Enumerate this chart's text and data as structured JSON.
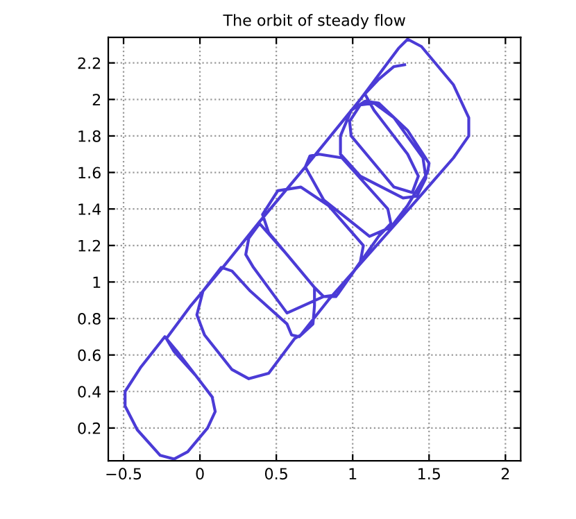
{
  "chart_data": {
    "type": "line",
    "title": "The orbit of steady flow",
    "xlim": [
      -0.6,
      2.1
    ],
    "ylim": [
      0.02,
      2.34
    ],
    "xticks": [
      -0.5,
      0,
      0.5,
      1,
      1.5,
      2
    ],
    "yticks": [
      0.2,
      0.4,
      0.6,
      0.8,
      1,
      1.2,
      1.4,
      1.6,
      1.8,
      2,
      2.2
    ],
    "grid": true,
    "marker": "none",
    "line_style": "solid",
    "series": [
      {
        "color": "#4b3bd6",
        "x": [
          0.08,
          -0.03,
          -0.15,
          -0.23,
          -0.39,
          -0.49,
          -0.49,
          -0.41,
          -0.26,
          -0.17,
          -0.08,
          0.05,
          0.1,
          0.08,
          -0.03,
          -0.17,
          -0.22,
          -0.06,
          0.15,
          0.39,
          0.69,
          1.05,
          1.3,
          1.36,
          1.45,
          1.66,
          1.76,
          1.76,
          1.66,
          1.42,
          1.05,
          0.84,
          0.66,
          0.62,
          0.45,
          0.32,
          0.21,
          0.03,
          -0.02,
          0.02,
          0.14,
          0.21,
          0.33,
          0.57,
          0.6,
          0.65,
          0.74,
          0.75,
          0.75,
          0.57,
          0.39,
          0.32,
          0.3,
          0.35,
          0.57,
          0.81,
          0.89,
          1.05,
          1.07,
          0.84,
          0.66,
          0.51,
          0.41,
          0.45,
          0.75,
          0.81,
          0.9,
          1.17,
          1.25,
          1.23,
          0.93,
          0.78,
          0.72,
          0.69,
          0.81,
          1.11,
          1.25,
          1.36,
          1.49,
          1.5,
          1.36,
          1.17,
          1.08,
          0.99,
          0.92,
          0.92,
          1.05,
          1.33,
          1.42,
          1.48,
          1.46,
          1.27,
          1.14,
          1.05,
          0.98,
          0.99,
          1.27,
          1.39,
          1.43,
          1.36,
          1.14,
          1.08,
          1.17,
          1.27,
          1.34
        ],
        "values": [
          0.37,
          0.49,
          0.62,
          0.7,
          0.53,
          0.4,
          0.32,
          0.19,
          0.05,
          0.03,
          0.07,
          0.2,
          0.29,
          0.37,
          0.49,
          0.62,
          0.69,
          0.87,
          1.08,
          1.33,
          1.63,
          2.0,
          2.28,
          2.33,
          2.29,
          2.08,
          1.9,
          1.8,
          1.68,
          1.45,
          1.1,
          0.9,
          0.71,
          0.69,
          0.5,
          0.47,
          0.52,
          0.71,
          0.82,
          0.95,
          1.08,
          1.06,
          0.95,
          0.77,
          0.71,
          0.7,
          0.77,
          0.87,
          0.97,
          1.15,
          1.32,
          1.24,
          1.15,
          1.08,
          0.83,
          0.92,
          0.92,
          1.11,
          1.2,
          1.42,
          1.52,
          1.5,
          1.37,
          1.27,
          0.97,
          0.92,
          0.93,
          1.25,
          1.32,
          1.4,
          1.68,
          1.7,
          1.69,
          1.63,
          1.45,
          1.25,
          1.3,
          1.42,
          1.6,
          1.65,
          1.83,
          1.98,
          1.99,
          1.94,
          1.8,
          1.7,
          1.58,
          1.46,
          1.47,
          1.57,
          1.68,
          1.9,
          1.98,
          1.97,
          1.88,
          1.8,
          1.52,
          1.49,
          1.58,
          1.7,
          1.94,
          2.03,
          2.11,
          2.18,
          2.19
        ]
      }
    ]
  }
}
